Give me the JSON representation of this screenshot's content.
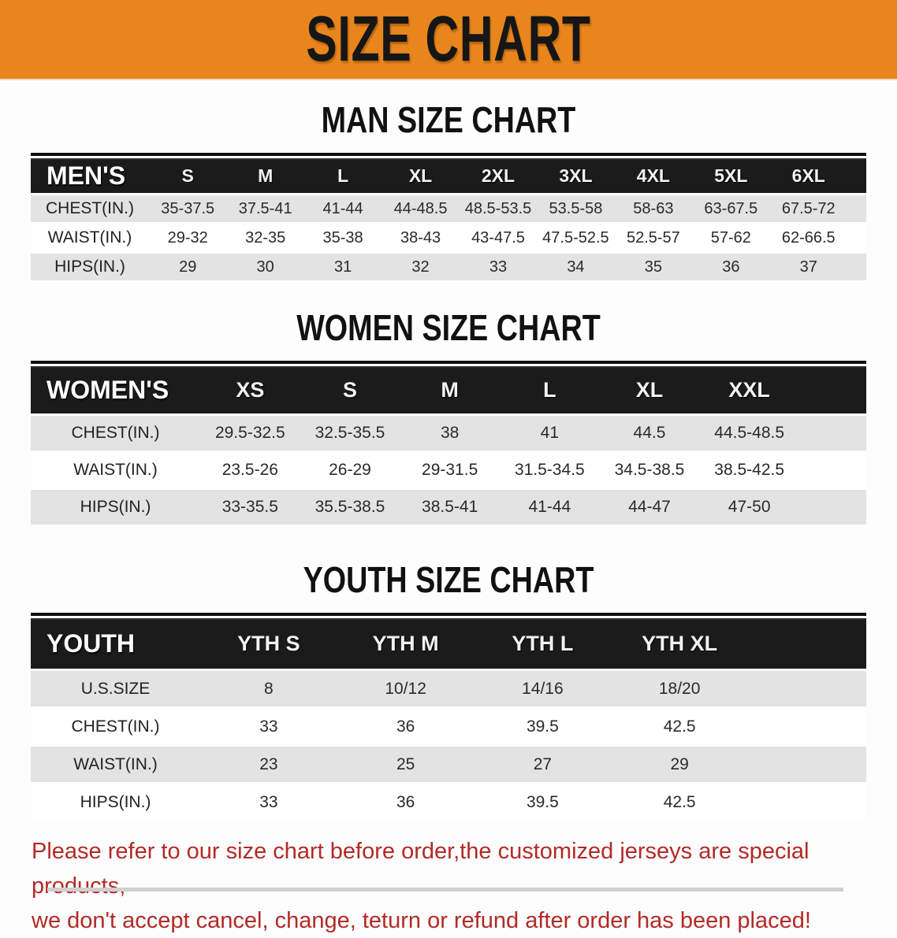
{
  "banner": {
    "title": "SIZE CHART",
    "bg_color": "#E8861D"
  },
  "men_heading": "MAN SIZE CHART",
  "women_heading": "WOMEN SIZE CHART",
  "youth_heading": "YOUTH SIZE CHART",
  "men": {
    "label": "MEN'S",
    "cols": [
      "S",
      "M",
      "L",
      "XL",
      "2XL",
      "3XL",
      "4XL",
      "5XL",
      "6XL"
    ],
    "rows": [
      {
        "label": "CHEST(IN.)",
        "values": [
          "35-37.5",
          "37.5-41",
          "41-44",
          "44-48.5",
          "48.5-53.5",
          "53.5-58",
          "58-63",
          "63-67.5",
          "67.5-72"
        ]
      },
      {
        "label": "WAIST(IN.)",
        "values": [
          "29-32",
          "32-35",
          "35-38",
          "38-43",
          "43-47.5",
          "47.5-52.5",
          "52.5-57",
          "57-62",
          "62-66.5"
        ]
      },
      {
        "label": "HIPS(IN.)",
        "values": [
          "29",
          "30",
          "31",
          "32",
          "33",
          "34",
          "35",
          "36",
          "37"
        ]
      }
    ]
  },
  "women": {
    "label": "WOMEN'S",
    "cols": [
      "XS",
      "S",
      "M",
      "L",
      "XL",
      "XXL"
    ],
    "rows": [
      {
        "label": "CHEST(IN.)",
        "values": [
          "29.5-32.5",
          "32.5-35.5",
          "38",
          "41",
          "44.5",
          "44.5-48.5"
        ]
      },
      {
        "label": "WAIST(IN.)",
        "values": [
          "23.5-26",
          "26-29",
          "29-31.5",
          "31.5-34.5",
          "34.5-38.5",
          "38.5-42.5"
        ]
      },
      {
        "label": "HIPS(IN.)",
        "values": [
          "33-35.5",
          "35.5-38.5",
          "38.5-41",
          "41-44",
          "44-47",
          "47-50"
        ]
      }
    ]
  },
  "youth": {
    "label": "YOUTH",
    "cols": [
      "YTH S",
      "YTH M",
      "YTH L",
      "YTH XL"
    ],
    "rows": [
      {
        "label": "U.S.SIZE",
        "values": [
          "8",
          "10/12",
          "14/16",
          "18/20"
        ]
      },
      {
        "label": "CHEST(IN.)",
        "values": [
          "33",
          "36",
          "39.5",
          "42.5"
        ]
      },
      {
        "label": "WAIST(IN.)",
        "values": [
          "23",
          "25",
          "27",
          "29"
        ]
      },
      {
        "label": "HIPS(IN.)",
        "values": [
          "33",
          "36",
          "39.5",
          "42.5"
        ]
      }
    ]
  },
  "disclaimer": {
    "line1": "Please refer to our size chart before order,the customized jerseys are special products,",
    "line2": "we don't accept cancel, change, teturn or refund after order has been placed!",
    "color": "#B22A26"
  }
}
